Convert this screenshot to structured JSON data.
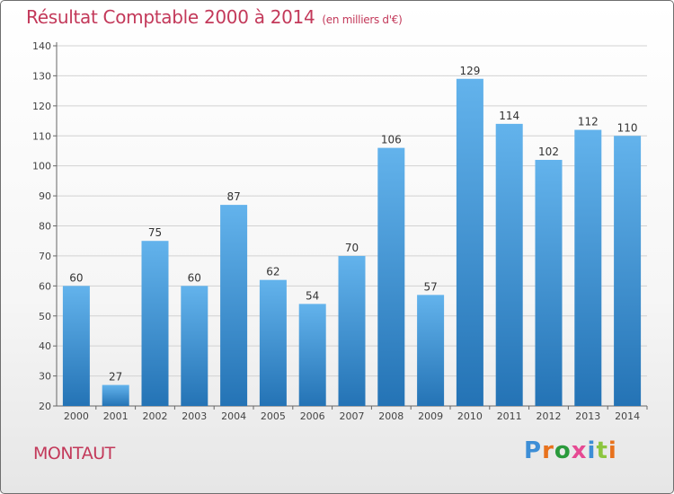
{
  "title": "Résultat Comptable 2000 à 2014",
  "subtitle": "(en milliers d'€)",
  "commune": "MONTAUT",
  "logo": {
    "text": "Proxiti",
    "colors": [
      "#3d8ed6",
      "#e8721d",
      "#2a9a3c",
      "#e64a93",
      "#3d8ed6",
      "#8cc63f",
      "#e8721d"
    ]
  },
  "colors": {
    "bar_top": "#63b3ec",
    "bar_bottom": "#2473b5",
    "title": "#c3395a"
  },
  "chart_data": {
    "type": "bar",
    "categories": [
      "2000",
      "2001",
      "2002",
      "2003",
      "2004",
      "2005",
      "2006",
      "2007",
      "2008",
      "2009",
      "2010",
      "2011",
      "2012",
      "2013",
      "2014"
    ],
    "values": [
      60,
      27,
      75,
      60,
      87,
      62,
      54,
      70,
      106,
      57,
      129,
      114,
      102,
      112,
      110
    ],
    "title": "Résultat Comptable 2000 à 2014",
    "xlabel": "",
    "ylabel": "",
    "ylim": [
      20,
      140
    ],
    "yticks": [
      20,
      30,
      40,
      50,
      60,
      70,
      80,
      90,
      100,
      110,
      120,
      130,
      140
    ],
    "grid": true,
    "legend": "none"
  }
}
